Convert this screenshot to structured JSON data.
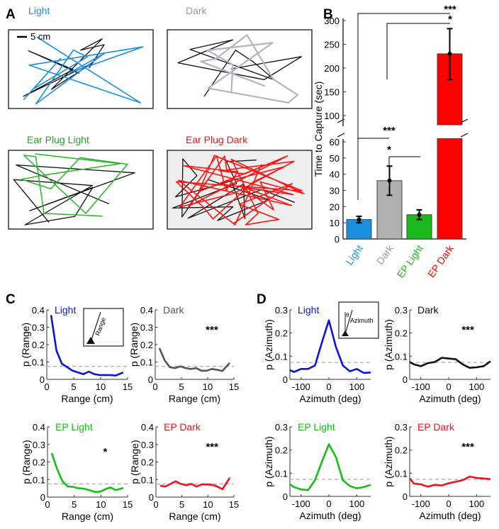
{
  "panel_labels": [
    "A",
    "B",
    "C",
    "D"
  ],
  "panel_a": {
    "titles": [
      "Light",
      "Dark",
      "Ear Plug Light",
      "Ear Plug Dark"
    ],
    "title_colors": [
      "#1a8fe0",
      "#999999",
      "#1aa81a",
      "#ee1111"
    ],
    "scale_bar": "5 cm"
  },
  "chart_data": [
    {
      "id": "B",
      "type": "bar",
      "title": "",
      "ylabel": "Time to Capture (sec)",
      "categories": [
        "Light",
        "Dark",
        "EP Light",
        "EP Dark"
      ],
      "colors": [
        "#1a8fe0",
        "#b0b0b0",
        "#1ab81a",
        "#ff0000"
      ],
      "values": [
        12,
        36,
        15,
        230
      ],
      "error_low": [
        10,
        27,
        12,
        176
      ],
      "error_high": [
        14,
        45,
        18,
        283
      ],
      "ylim_lower": [
        0,
        60
      ],
      "ylim_upper": [
        100,
        300
      ],
      "yticks_lower": [
        0,
        10,
        20,
        30,
        40,
        50,
        60
      ],
      "yticks_upper": [
        100,
        150,
        200,
        250,
        300
      ],
      "axis_break": true,
      "significance": [
        {
          "pair": [
            "Light",
            "Dark"
          ],
          "label": "***"
        },
        {
          "pair": [
            "Dark",
            "EP Light"
          ],
          "label": "*"
        },
        {
          "pair": [
            "Light",
            "EP Dark"
          ],
          "label": "***"
        },
        {
          "pair": [
            "Dark",
            "EP Dark"
          ],
          "label": "*"
        }
      ]
    },
    {
      "id": "C",
      "type": "line",
      "xlabel": "Range (cm)",
      "ylabel": "p (Range)",
      "xlim": [
        0,
        15
      ],
      "ylim": [
        0,
        0.4
      ],
      "xticks": [
        0,
        5,
        10,
        15
      ],
      "yticks": [
        0,
        0.1,
        0.2,
        0.3,
        0.4
      ],
      "ytick_labels": [
        "0",
        "0.1",
        "0.2",
        "0.3",
        "0.4"
      ],
      "chance_level": 0.075,
      "inset_label": "Range",
      "x": [
        0.8,
        1.8,
        2.8,
        3.8,
        4.8,
        5.8,
        6.8,
        7.8,
        8.8,
        9.8,
        10.8,
        11.8,
        12.8,
        14.2
      ],
      "subplots": [
        {
          "name": "Light",
          "color": "#0a14e0",
          "significance": "",
          "values": [
            0.37,
            0.165,
            0.09,
            0.07,
            0.05,
            0.04,
            0.03,
            0.045,
            0.03,
            0.025,
            0.025,
            0.025,
            0.022,
            0.04
          ]
        },
        {
          "name": "Dark",
          "color": "#555555",
          "significance": "***",
          "values": [
            0.18,
            0.11,
            0.07,
            0.065,
            0.075,
            0.065,
            0.06,
            0.065,
            0.05,
            0.05,
            0.06,
            0.055,
            0.048,
            0.095
          ]
        },
        {
          "name": "EP Light",
          "color": "#14c014",
          "significance": "*",
          "values": [
            0.25,
            0.16,
            0.09,
            0.06,
            0.058,
            0.05,
            0.048,
            0.04,
            0.03,
            0.03,
            0.045,
            0.055,
            0.04,
            0.052
          ]
        },
        {
          "name": "EP Dark",
          "color": "#ee1122",
          "significance": "***",
          "values": [
            0.065,
            0.06,
            0.075,
            0.09,
            0.075,
            0.068,
            0.075,
            0.06,
            0.072,
            0.072,
            0.07,
            0.06,
            0.045,
            0.11
          ]
        }
      ]
    },
    {
      "id": "D",
      "type": "line",
      "xlabel": "Azimuth (deg)",
      "ylabel": "p (Azimuth)",
      "xlim": [
        -140,
        150
      ],
      "ylim": [
        0,
        0.3
      ],
      "xticks": [
        -100,
        0,
        100
      ],
      "yticks": [
        0,
        0.1,
        0.2,
        0.3
      ],
      "ytick_labels": [
        "0",
        "0.1",
        "0.2",
        "0.3"
      ],
      "chance_level": 0.073,
      "inset_label": "Azimuth",
      "inset_symbol": "θ",
      "x": [
        -140,
        -125,
        -100,
        -75,
        -50,
        -25,
        0,
        25,
        50,
        75,
        100,
        125,
        150
      ],
      "subplots": [
        {
          "name": "Light",
          "color": "#0a14e0",
          "significance": "",
          "values": [
            0.04,
            0.032,
            0.045,
            0.045,
            0.06,
            0.16,
            0.255,
            0.14,
            0.06,
            0.035,
            0.045,
            0.028,
            0.03
          ]
        },
        {
          "name": "Dark",
          "color": "#111111",
          "significance": "***",
          "values": [
            0.075,
            0.065,
            0.057,
            0.07,
            0.075,
            0.093,
            0.09,
            0.087,
            0.065,
            0.05,
            0.052,
            0.057,
            0.078
          ]
        },
        {
          "name": "EP Light",
          "color": "#14c014",
          "significance": "",
          "values": [
            0.052,
            0.04,
            0.03,
            0.027,
            0.07,
            0.15,
            0.225,
            0.17,
            0.07,
            0.045,
            0.035,
            0.04,
            0.05
          ]
        },
        {
          "name": "EP Dark",
          "color": "#ee1122",
          "significance": "***",
          "values": [
            0.078,
            0.055,
            0.052,
            0.042,
            0.05,
            0.047,
            0.057,
            0.063,
            0.07,
            0.085,
            0.08,
            0.077,
            0.074
          ]
        }
      ]
    }
  ]
}
